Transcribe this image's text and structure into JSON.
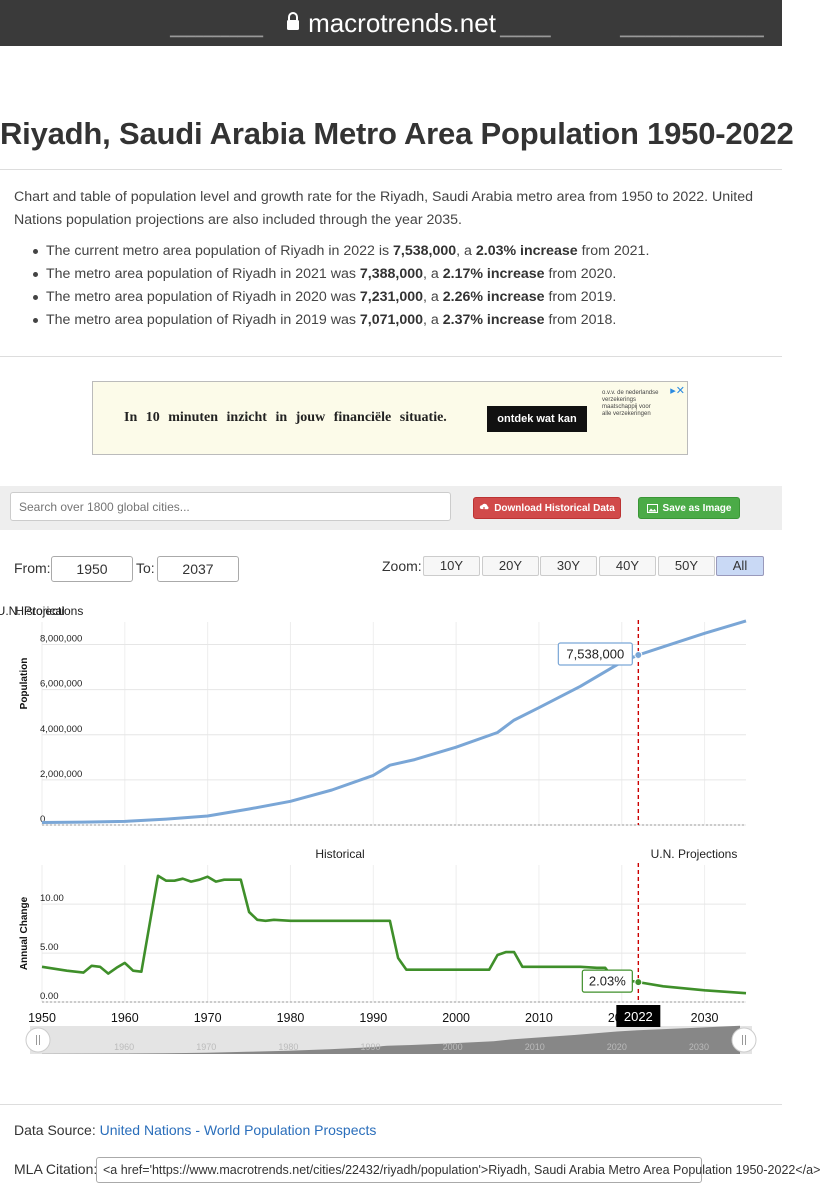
{
  "browser": {
    "url": "macrotrends.net"
  },
  "page": {
    "title": "Riyadh, Saudi Arabia Metro Area Population 1950-2022",
    "intro": "Chart and table of population level and growth rate for the Riyadh, Saudi Arabia metro area from 1950 to 2022. United Nations population projections are also included through the year 2035.",
    "bullets": [
      {
        "pre": "The current metro area population of Riyadh in 2022 is ",
        "value": "7,538,000",
        "mid": ", a ",
        "change": "2.03% increase",
        "post": " from 2021."
      },
      {
        "pre": "The metro area population of Riyadh in 2021 was ",
        "value": "7,388,000",
        "mid": ", a ",
        "change": "2.17% increase",
        "post": " from 2020."
      },
      {
        "pre": "The metro area population of Riyadh in 2020 was ",
        "value": "7,231,000",
        "mid": ", a ",
        "change": "2.26% increase",
        "post": " from 2019."
      },
      {
        "pre": "The metro area population of Riyadh in 2019 was ",
        "value": "7,071,000",
        "mid": ", a ",
        "change": "2.37% increase",
        "post": " from 2018."
      }
    ]
  },
  "ad": {
    "text": "In 10 minuten inzicht in jouw financiële situatie.",
    "button": "ontdek wat kan",
    "logo_text": "o.v.v. de nederlandse verzekerings maatschappij voor alle verzekeringen",
    "close": "✕"
  },
  "toolbar": {
    "search_placeholder": "Search over 1800 global cities...",
    "download_label": "Download Historical Data",
    "save_label": "Save as Image"
  },
  "controls": {
    "from_label": "From:",
    "from_value": "1950",
    "to_label": "To:",
    "to_value": "2037",
    "zoom_label": "Zoom:",
    "zoom_options": [
      "10Y",
      "20Y",
      "30Y",
      "40Y",
      "50Y",
      "All"
    ],
    "zoom_selected": "All"
  },
  "colors": {
    "population_line": "#7aa6d6",
    "change_line": "#3f8f2a",
    "marker_line": "#cc0000"
  },
  "chart_data": [
    {
      "type": "line",
      "title": "",
      "ylabel": "Population",
      "region_labels": [
        "Historical",
        "U.N. Projections"
      ],
      "x_range": [
        1950,
        2035
      ],
      "ylim": [
        0,
        9000000
      ],
      "yticks": [
        0,
        2000000,
        4000000,
        6000000,
        8000000
      ],
      "ytick_labels": [
        "0",
        "2,000,000",
        "4,000,000",
        "6,000,000",
        "8,000,000"
      ],
      "marker_year": 2022,
      "tooltip": "7,538,000",
      "series": [
        {
          "x": [
            1950,
            1955,
            1960,
            1965,
            1970,
            1975,
            1980,
            1985,
            1990,
            1992,
            1995,
            2000,
            2005,
            2007,
            2010,
            2015,
            2020,
            2022,
            2025,
            2030,
            2035
          ],
          "values": [
            110000,
            130000,
            160000,
            260000,
            400000,
            710000,
            1050000,
            1550000,
            2200000,
            2650000,
            2900000,
            3450000,
            4100000,
            4650000,
            5200000,
            6150000,
            7231000,
            7538000,
            7900000,
            8500000,
            9050000
          ]
        }
      ]
    },
    {
      "type": "line",
      "title": "",
      "ylabel": "Annual Change",
      "region_labels": [
        "Historical",
        "U.N. Projections"
      ],
      "x_range": [
        1950,
        2035
      ],
      "ylim": [
        0,
        14
      ],
      "yticks": [
        0,
        5,
        10
      ],
      "ytick_labels": [
        "0.00",
        "5.00",
        "10.00"
      ],
      "xticks": [
        1950,
        1960,
        1970,
        1980,
        1990,
        2000,
        2010,
        2020,
        2030
      ],
      "marker_year": 2022,
      "marker_label": "2022",
      "tooltip": "2.03%",
      "series": [
        {
          "x": [
            1950,
            1953,
            1955,
            1956,
            1957,
            1958,
            1959,
            1960,
            1961,
            1962,
            1963,
            1964,
            1965,
            1966,
            1967,
            1968,
            1969,
            1970,
            1971,
            1972,
            1973,
            1974,
            1975,
            1976,
            1977,
            1978,
            1980,
            1985,
            1990,
            1991,
            1992,
            1993,
            1994,
            1995,
            2000,
            2003,
            2004,
            2005,
            2006,
            2007,
            2008,
            2010,
            2015,
            2017,
            2018,
            2019,
            2020,
            2021,
            2022,
            2025,
            2030,
            2035
          ],
          "values": [
            3.6,
            3.2,
            3.0,
            3.7,
            3.6,
            2.9,
            3.5,
            4.0,
            3.2,
            3.1,
            8.0,
            12.9,
            12.4,
            12.4,
            12.6,
            12.3,
            12.5,
            12.8,
            12.3,
            12.5,
            12.5,
            12.5,
            9.2,
            8.4,
            8.3,
            8.4,
            8.3,
            8.3,
            8.3,
            8.3,
            8.3,
            4.5,
            3.3,
            3.3,
            3.3,
            3.3,
            3.3,
            4.8,
            5.1,
            5.1,
            3.6,
            3.6,
            3.6,
            3.5,
            3.5,
            2.37,
            2.26,
            2.17,
            2.03,
            1.6,
            1.2,
            0.9
          ]
        }
      ]
    }
  ],
  "navigator": {
    "labels": [
      "1960",
      "1970",
      "1980",
      "1990",
      "2000",
      "2010",
      "2020",
      "2030"
    ]
  },
  "footer": {
    "source_label": "Data Source: ",
    "source_link": "United Nations - World Population Prospects",
    "mla_label": "MLA Citation:",
    "mla_value": "<a href='https://www.macrotrends.net/cities/22432/riyadh/population'>Riyadh, Saudi Arabia Metro Area Population 1950-2022</a>"
  }
}
